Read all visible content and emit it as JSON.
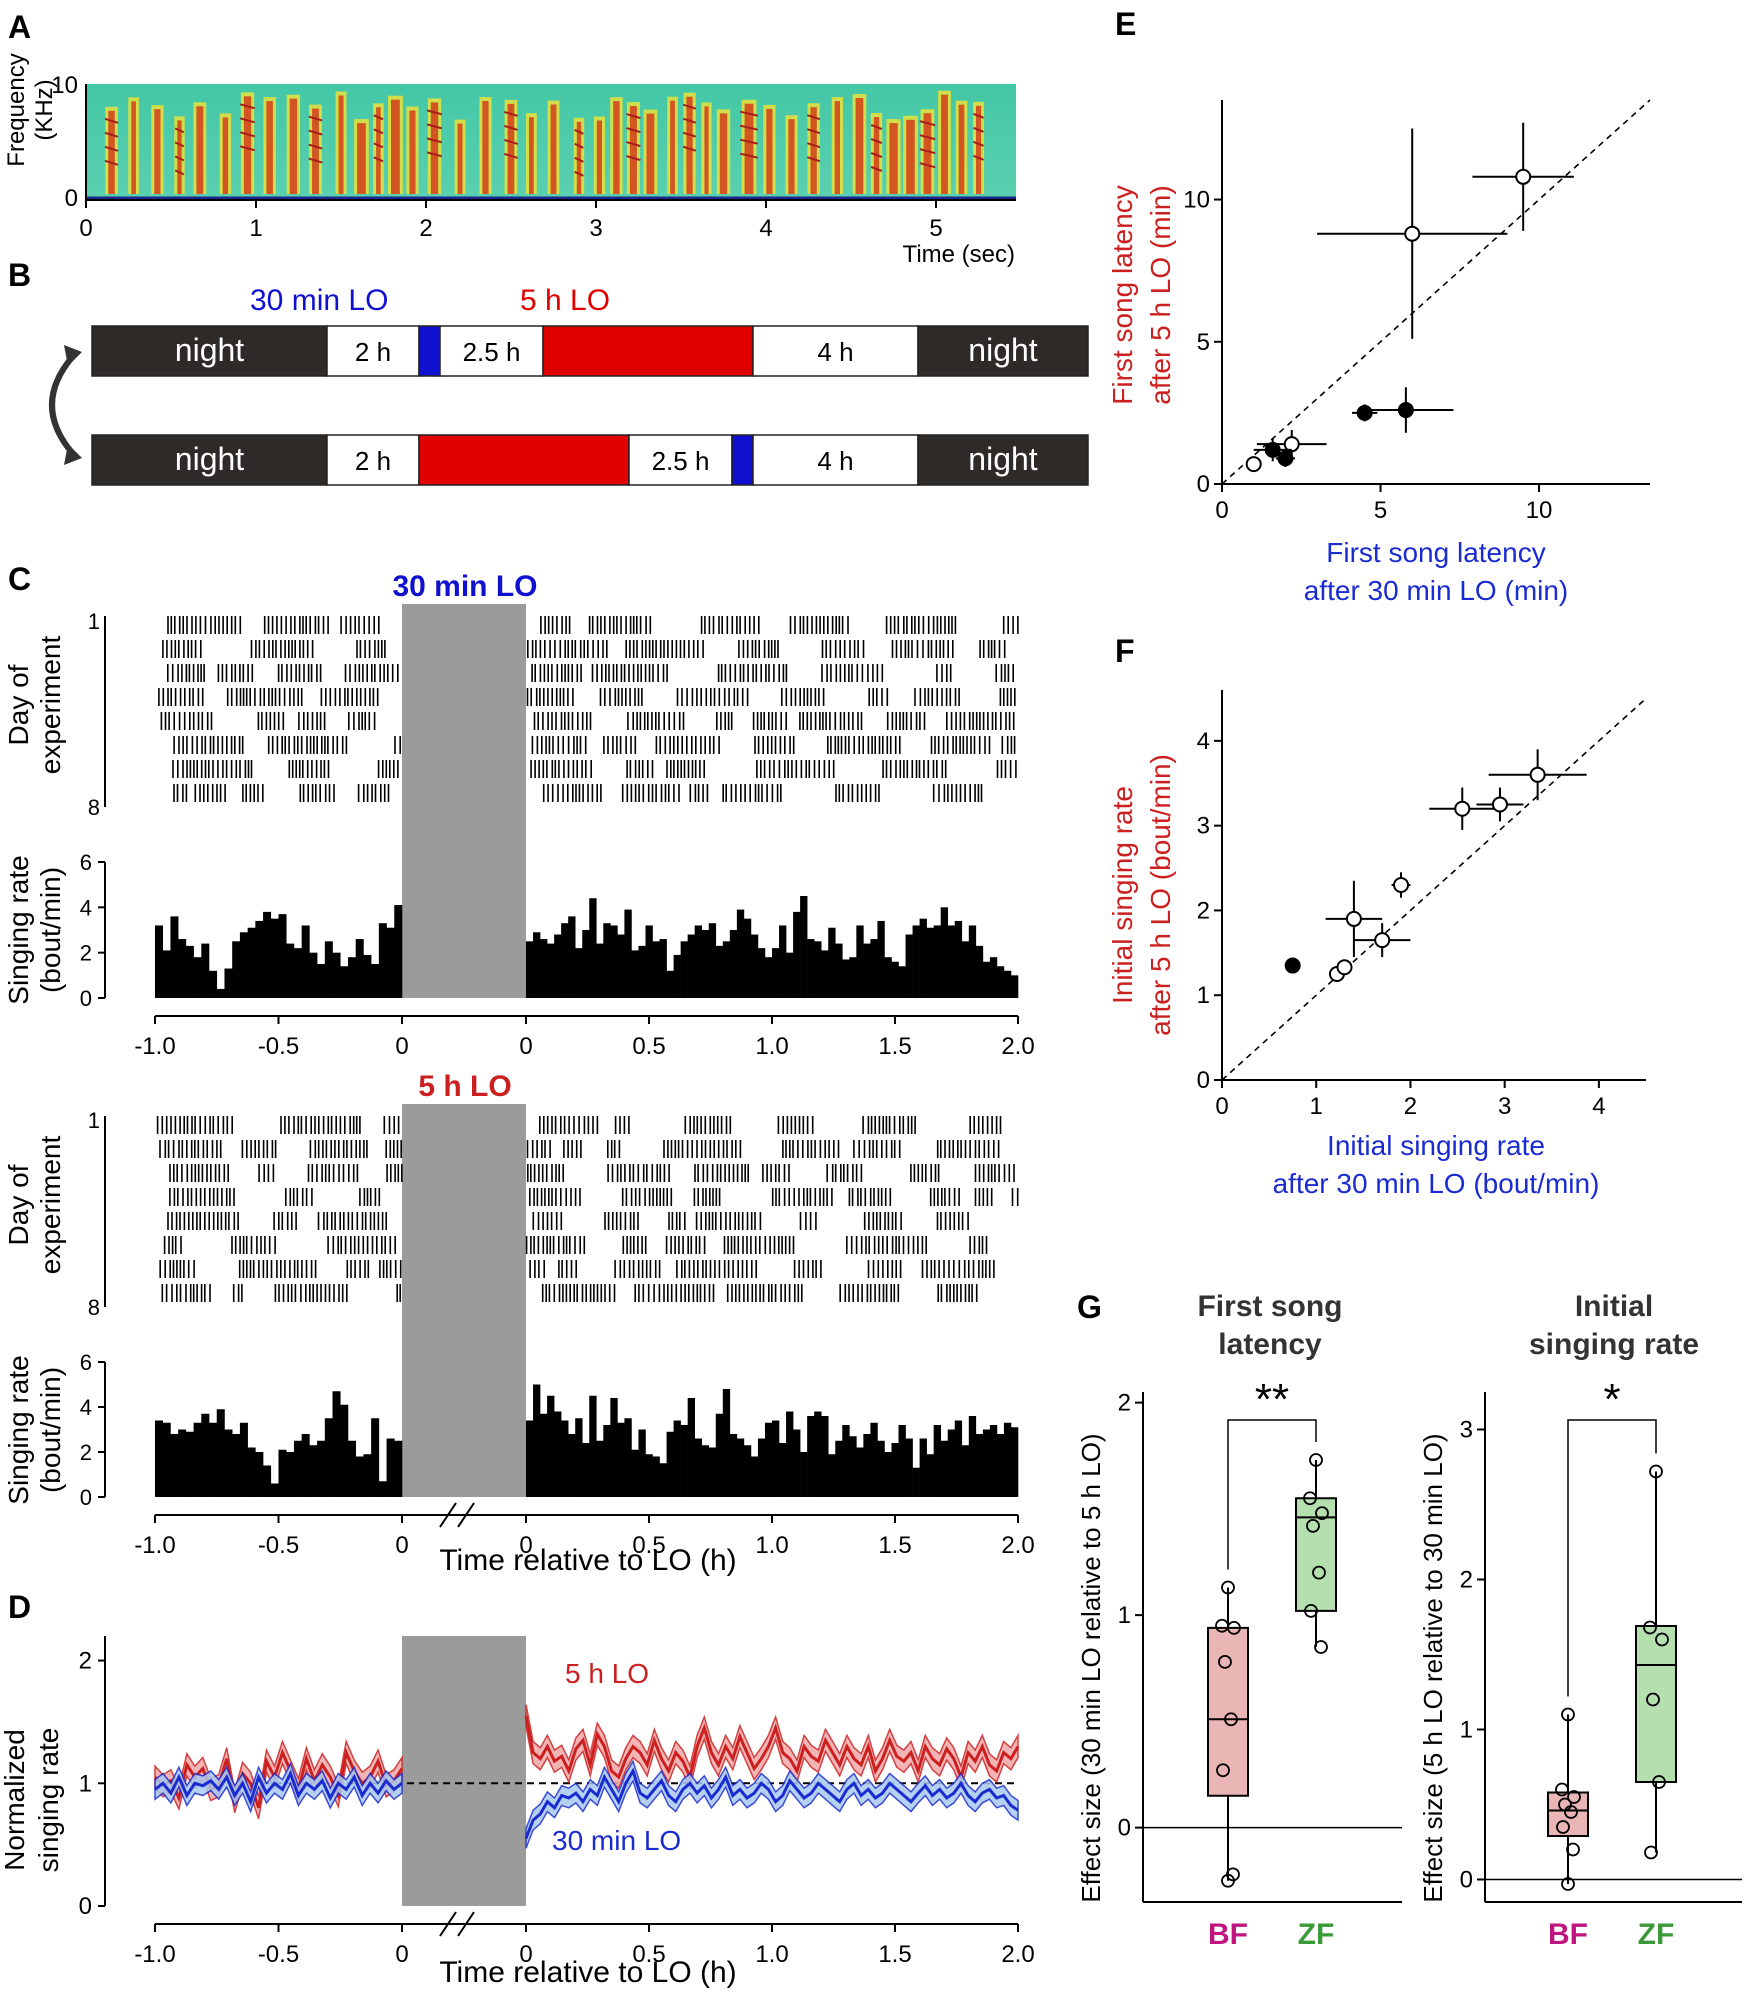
{
  "panels": {
    "A": {
      "label": "A",
      "ylabel": [
        "Frequency",
        "(KHz)"
      ],
      "xlabel": "Time (sec)",
      "xticks": [
        "0",
        "1",
        "2",
        "3",
        "4",
        "5"
      ],
      "yticks": [
        "0",
        "10"
      ]
    },
    "B": {
      "label": "B",
      "legend_blue": "30 min LO",
      "legend_red": "5 h LO",
      "color_blue": "#1010d0",
      "color_red": "#e00000",
      "row1": [
        {
          "kind": "night",
          "text": "night"
        },
        {
          "kind": "light",
          "text": "2 h"
        },
        {
          "kind": "blue",
          "text": ""
        },
        {
          "kind": "light",
          "text": "2.5 h"
        },
        {
          "kind": "red",
          "text": ""
        },
        {
          "kind": "light",
          "text": "4 h"
        },
        {
          "kind": "night",
          "text": "night"
        }
      ],
      "row2": [
        {
          "kind": "night",
          "text": "night"
        },
        {
          "kind": "light",
          "text": "2 h"
        },
        {
          "kind": "red",
          "text": ""
        },
        {
          "kind": "light",
          "text": "2.5 h"
        },
        {
          "kind": "blue",
          "text": ""
        },
        {
          "kind": "light",
          "text": "4 h"
        },
        {
          "kind": "night",
          "text": "night"
        }
      ]
    },
    "C": {
      "label": "C",
      "top_title": "30 min LO",
      "bottom_title": "5 h LO",
      "raster_ylabel": [
        "Day of",
        "experiment"
      ],
      "raster_yticks": [
        "1",
        "8"
      ],
      "hist_ylabel": [
        "Singing rate",
        "(bout/min)"
      ],
      "hist_yticks": [
        "0",
        "2",
        "4",
        "6"
      ],
      "xticks": [
        "-1.0",
        "-0.5",
        "0",
        "0",
        "0.5",
        "1.0",
        "1.5",
        "2.0"
      ],
      "xlabel": "Time relative to LO (h)"
    },
    "D": {
      "label": "D",
      "ylabel": [
        "Normalized",
        "singing rate"
      ],
      "yticks": [
        "0",
        "1",
        "2"
      ],
      "xticks": [
        "-1.0",
        "-0.5",
        "0",
        "0",
        "0.5",
        "1.0",
        "1.5",
        "2.0"
      ],
      "xlabel": "Time relative to LO (h)",
      "red_label": "5 h LO",
      "blue_label": "30 min LO"
    },
    "E": {
      "label": "E",
      "ylabel": [
        "First song latency",
        "after 5 h LO (min)"
      ],
      "xlabel": [
        "First song latency",
        "after 30 min LO (min)"
      ],
      "ticks": [
        "0",
        "5",
        "10"
      ]
    },
    "F": {
      "label": "F",
      "ylabel": [
        "Initial singing rate",
        "after 5 h LO (bout/min)"
      ],
      "xlabel": [
        "Initial singing rate",
        "after 30 min LO (bout/min)"
      ],
      "ticks": [
        "0",
        "1",
        "2",
        "3",
        "4"
      ]
    },
    "G": {
      "label": "G",
      "left_title": [
        "First song",
        "latency"
      ],
      "right_title": [
        "Initial",
        "singing rate"
      ],
      "left_ylabel": "Effect size (30 min LO relative to 5 h LO)",
      "right_ylabel": "Effect size (5 h LO relative to 30 min LO)",
      "left_sig": "**",
      "right_sig": "*",
      "left_yticks": [
        "0",
        "1",
        "2"
      ],
      "right_yticks": [
        "0",
        "1",
        "2",
        "3"
      ],
      "group_bf": "BF",
      "group_zf": "ZF",
      "color_bf": "#c0147f",
      "color_zf": "#3a9a3a"
    }
  },
  "chart_data": [
    {
      "type": "heatmap",
      "panel": "A",
      "xlabel": "Time (sec)",
      "ylabel": "Frequency (KHz)",
      "xlim": [
        0,
        5.4
      ],
      "ylim": [
        0,
        10
      ],
      "syllable_onsets_sec": [
        0.15,
        0.28,
        0.42,
        0.55,
        0.67,
        0.82,
        0.95,
        1.08,
        1.22,
        1.35,
        1.5,
        1.62,
        1.72,
        1.82,
        1.92,
        2.05,
        2.2,
        2.35,
        2.5,
        2.62,
        2.75,
        2.9,
        3.02,
        3.12,
        3.22,
        3.32,
        3.45,
        3.55,
        3.65,
        3.75,
        3.9,
        4.02,
        4.15,
        4.28,
        4.42,
        4.55,
        4.65,
        4.75,
        4.85,
        4.95,
        5.05,
        5.15,
        5.25
      ]
    },
    {
      "type": "bar",
      "panel": "C",
      "title": "30 min LO",
      "xlabel": "Time relative to LO (h)",
      "ylabel": "Singing rate (bout/min)",
      "ylim": [
        0,
        6
      ],
      "pre_bins": [
        3.2,
        2.1,
        3.6,
        2.6,
        2.3,
        1.8,
        2.4,
        1.2,
        0.4,
        1.3,
        2.5,
        2.9,
        3.1,
        3.4,
        3.8,
        3.5,
        3.7,
        2.4,
        2.2,
        3.2,
        2.0,
        1.5,
        2.5,
        2.0,
        1.4,
        1.8,
        2.6,
        1.9,
        1.5,
        3.3,
        3.1,
        4.1
      ],
      "post_bins": [
        2.5,
        2.9,
        2.6,
        2.4,
        2.8,
        3.3,
        3.6,
        2.2,
        3.0,
        4.4,
        2.4,
        3.3,
        3.2,
        2.8,
        3.9,
        2.1,
        2.3,
        3.2,
        2.5,
        2.6,
        1.2,
        1.9,
        2.5,
        2.8,
        3.2,
        3.0,
        3.3,
        2.3,
        2.5,
        3.0,
        3.9,
        3.5,
        2.8,
        2.2,
        1.8,
        2.2,
        3.2,
        2.0,
        3.8,
        4.5,
        2.6,
        2.5,
        2.1,
        3.1,
        2.4,
        1.7,
        1.8,
        3.2,
        2.4,
        2.6,
        3.4,
        1.8,
        1.6,
        1.4,
        2.8,
        3.2,
        3.5,
        3.1,
        3.2,
        4.0,
        3.2,
        3.4,
        2.5,
        3.2,
        2.3,
        1.6,
        1.8,
        1.4,
        1.2,
        1.0
      ]
    },
    {
      "type": "bar",
      "panel": "C",
      "title": "5 h LO",
      "xlabel": "Time relative to LO (h)",
      "ylabel": "Singing rate (bout/min)",
      "ylim": [
        0,
        6
      ],
      "pre_bins": [
        3.4,
        3.3,
        2.8,
        3.0,
        2.9,
        3.3,
        3.7,
        3.3,
        3.9,
        3.0,
        2.8,
        3.3,
        2.2,
        2.0,
        1.4,
        0.6,
        2.1,
        2.0,
        2.5,
        2.8,
        2.3,
        2.5,
        3.5,
        4.7,
        4.1,
        2.5,
        1.8,
        1.9,
        3.5,
        0.7,
        2.6,
        2.5
      ],
      "post_bins": [
        3.4,
        5.0,
        3.7,
        4.5,
        3.8,
        3.4,
        2.8,
        3.5,
        2.4,
        4.5,
        2.5,
        3.2,
        4.4,
        3.3,
        3.5,
        2.1,
        3.0,
        1.9,
        1.8,
        1.5,
        2.9,
        3.4,
        3.2,
        4.4,
        2.6,
        2.3,
        2.2,
        3.7,
        4.8,
        2.8,
        2.6,
        2.3,
        1.8,
        2.6,
        3.3,
        3.4,
        2.4,
        3.8,
        3.0,
        2.0,
        3.6,
        3.8,
        3.6,
        1.9,
        2.5,
        3.2,
        2.7,
        2.2,
        2.8,
        3.3,
        2.5,
        2.0,
        2.4,
        3.2,
        2.6,
        1.3,
        2.6,
        1.9,
        3.2,
        2.5,
        3.0,
        3.4,
        2.3,
        3.6,
        2.8,
        3.0,
        3.2,
        2.8,
        3.3,
        3.1
      ]
    },
    {
      "type": "area",
      "panel": "D",
      "xlabel": "Time relative to LO (h)",
      "ylabel": "Normalized singing rate",
      "ylim": [
        0,
        2.2
      ],
      "series": [
        {
          "name": "5 h LO",
          "color": "#cc1f1f",
          "pre": [
            1.05,
            0.98,
            1.02,
            0.88,
            1.15,
            1.05,
            1.12,
            0.95,
            0.98,
            1.2,
            0.85,
            1.08,
            1.0,
            0.8,
            1.18,
            1.05,
            1.25,
            1.1,
            0.95,
            1.2,
            1.02,
            1.15,
            1.05,
            0.9,
            1.25,
            1.1,
            1.0,
            1.05,
            1.18,
            0.98,
            1.02,
            1.12
          ],
          "post": [
            1.55,
            1.25,
            1.2,
            1.3,
            1.18,
            1.22,
            1.1,
            1.28,
            1.35,
            1.15,
            1.4,
            1.3,
            1.1,
            1.05,
            1.2,
            1.3,
            1.25,
            1.15,
            1.35,
            1.2,
            1.1,
            1.25,
            1.18,
            1.05,
            1.3,
            1.45,
            1.25,
            1.15,
            1.3,
            1.2,
            1.38,
            1.25,
            1.12,
            1.2,
            1.3,
            1.45,
            1.25,
            1.2,
            1.1,
            1.3,
            1.22,
            1.18,
            1.35,
            1.25,
            1.15,
            1.3,
            1.2,
            1.15,
            1.3,
            1.1,
            1.2,
            1.35,
            1.22,
            1.18,
            1.25,
            1.1,
            1.3,
            1.2,
            1.15,
            1.28,
            1.2,
            1.05,
            1.25,
            1.18,
            1.3,
            1.15,
            1.1,
            1.25,
            1.2,
            1.3
          ]
        },
        {
          "name": "30 min LO",
          "color": "#1a2bd1",
          "pre": [
            0.95,
            1.0,
            0.92,
            1.05,
            0.9,
            1.0,
            0.98,
            1.02,
            0.95,
            1.05,
            0.9,
            1.0,
            0.85,
            1.05,
            0.92,
            1.0,
            0.95,
            1.08,
            0.9,
            1.0,
            0.95,
            1.02,
            0.88,
            1.0,
            0.95,
            1.05,
            0.9,
            1.0,
            0.92,
            1.02,
            0.95,
            1.0
          ],
          "post": [
            0.55,
            0.7,
            0.75,
            0.85,
            0.8,
            0.9,
            0.88,
            0.92,
            0.85,
            0.95,
            0.9,
            1.05,
            0.95,
            0.85,
            1.0,
            1.1,
            0.92,
            0.88,
            0.95,
            1.02,
            0.9,
            0.85,
            0.95,
            1.0,
            0.92,
            0.98,
            0.88,
            0.95,
            1.05,
            0.9,
            0.95,
            0.88,
            0.92,
            1.0,
            0.95,
            0.85,
            0.9,
            1.02,
            0.95,
            0.88,
            0.92,
            1.0,
            0.95,
            0.9,
            0.85,
            0.95,
            1.0,
            0.9,
            0.95,
            0.88,
            0.92,
            1.0,
            0.95,
            0.9,
            0.85,
            0.92,
            0.98,
            0.9,
            0.95,
            0.88,
            0.92,
            1.0,
            0.9,
            0.85,
            0.92,
            0.95,
            0.88,
            0.9,
            0.82,
            0.78
          ]
        }
      ]
    },
    {
      "type": "scatter",
      "panel": "E",
      "xlabel": "First song latency after 30 min LO (min)",
      "ylabel": "First song latency after 5 h LO (min)",
      "xlim": [
        0,
        13.5
      ],
      "ylim": [
        0,
        13.5
      ],
      "points": [
        {
          "x": 9.5,
          "y": 10.8,
          "xerr": 1.6,
          "yerr": 1.9,
          "filled": false
        },
        {
          "x": 6.0,
          "y": 8.8,
          "xerr": 3.0,
          "yerr": 3.7,
          "filled": false
        },
        {
          "x": 5.8,
          "y": 2.6,
          "xerr": 1.5,
          "yerr": 0.8,
          "filled": true
        },
        {
          "x": 4.5,
          "y": 2.5,
          "xerr": 0.4,
          "yerr": 0.3,
          "filled": true
        },
        {
          "x": 2.2,
          "y": 1.4,
          "xerr": 1.1,
          "yerr": 0.5,
          "filled": false
        },
        {
          "x": 1.6,
          "y": 1.2,
          "xerr": 0.6,
          "yerr": 0.4,
          "filled": true
        },
        {
          "x": 2.0,
          "y": 0.9,
          "xerr": 0.3,
          "yerr": 0.3,
          "filled": true
        },
        {
          "x": 1.0,
          "y": 0.7,
          "xerr": 0.1,
          "yerr": 0.1,
          "filled": false
        }
      ]
    },
    {
      "type": "scatter",
      "panel": "F",
      "xlabel": "Initial singing rate after 30 min LO (bout/min)",
      "ylabel": "Initial singing rate after 5 h LO (bout/min)",
      "xlim": [
        0,
        4.5
      ],
      "ylim": [
        0,
        4.6
      ],
      "points": [
        {
          "x": 3.35,
          "y": 3.6,
          "xerr": 0.52,
          "yerr": 0.3,
          "filled": false
        },
        {
          "x": 2.55,
          "y": 3.2,
          "xerr": 0.35,
          "yerr": 0.25,
          "filled": false
        },
        {
          "x": 2.95,
          "y": 3.25,
          "xerr": 0.25,
          "yerr": 0.2,
          "filled": false
        },
        {
          "x": 1.9,
          "y": 2.3,
          "xerr": 0.1,
          "yerr": 0.15,
          "filled": false
        },
        {
          "x": 1.4,
          "y": 1.9,
          "xerr": 0.3,
          "yerr": 0.45,
          "filled": false
        },
        {
          "x": 1.7,
          "y": 1.65,
          "xerr": 0.3,
          "yerr": 0.2,
          "filled": false
        },
        {
          "x": 1.22,
          "y": 1.25,
          "xerr": 0.05,
          "yerr": 0.05,
          "filled": false
        },
        {
          "x": 1.3,
          "y": 1.33,
          "xerr": 0.05,
          "yerr": 0.05,
          "filled": false
        },
        {
          "x": 0.75,
          "y": 1.35,
          "xerr": 0.05,
          "yerr": 0.07,
          "filled": true
        }
      ]
    },
    {
      "type": "box",
      "panel": "G",
      "title": "First song latency",
      "ylabel": "Effect size (30 min LO relative to 5 h LO)",
      "ylim": [
        -0.35,
        2.05
      ],
      "groups": [
        {
          "name": "BF",
          "color": "#eab5b5",
          "q1": 0.15,
          "median": 0.51,
          "q3": 0.94,
          "whisker_low": -0.25,
          "whisker_high": 1.13,
          "points": [
            1.13,
            0.95,
            0.94,
            0.78,
            0.51,
            0.27,
            -0.22,
            -0.25
          ]
        },
        {
          "name": "ZF",
          "color": "#b6dfb0",
          "q1": 1.02,
          "median": 1.46,
          "q3": 1.55,
          "whisker_low": 0.85,
          "whisker_high": 1.73,
          "points": [
            1.73,
            1.55,
            1.48,
            1.42,
            1.2,
            1.02,
            0.85
          ]
        }
      ]
    },
    {
      "type": "box",
      "panel": "G",
      "title": "Initial singing rate",
      "ylabel": "Effect size (5 h LO relative to 30 min LO)",
      "ylim": [
        -0.15,
        3.25
      ],
      "groups": [
        {
          "name": "BF",
          "color": "#eab5b5",
          "q1": 0.29,
          "median": 0.46,
          "q3": 0.58,
          "whisker_low": -0.03,
          "whisker_high": 1.1,
          "points": [
            1.1,
            0.6,
            0.55,
            0.5,
            0.45,
            0.35,
            0.2,
            -0.03
          ]
        },
        {
          "name": "ZF",
          "color": "#b6dfb0",
          "q1": 0.65,
          "median": 1.43,
          "q3": 1.69,
          "whisker_low": 0.18,
          "whisker_high": 2.72,
          "points": [
            2.72,
            1.68,
            1.6,
            1.2,
            0.65,
            0.18
          ]
        }
      ]
    }
  ]
}
